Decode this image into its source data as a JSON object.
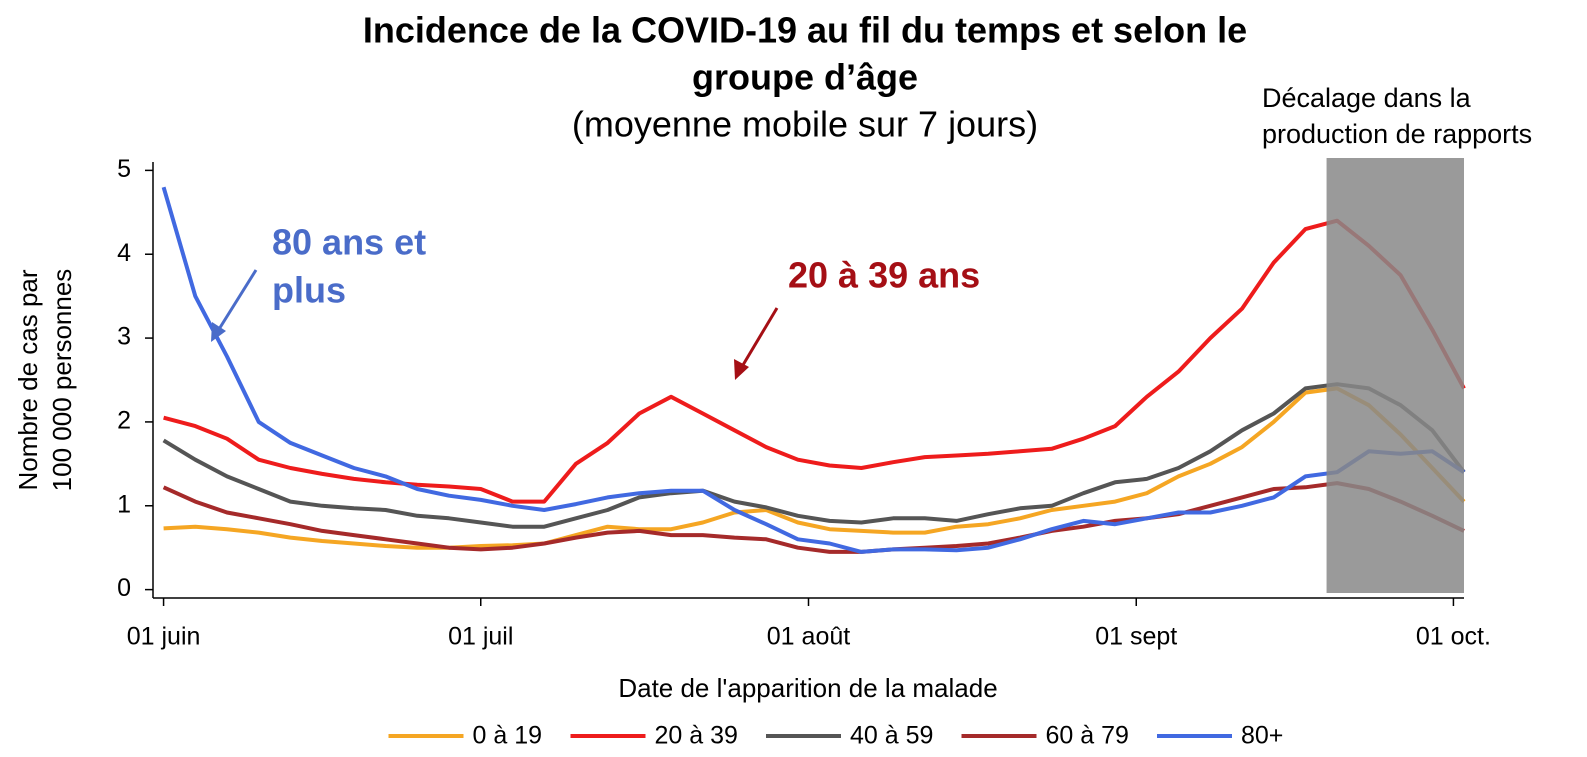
{
  "chart_data": {
    "type": "line",
    "title": [
      "Incidence de la COVID-19 au fil du temps et selon le",
      "groupe d’âge"
    ],
    "subtitle": "(moyenne mobile sur 7 jours)",
    "xlabel": "Date de l'apparition de la malade",
    "ylabel": [
      "Nombre de cas par",
      "100 000 personnes"
    ],
    "x": [
      0,
      3,
      6,
      9,
      12,
      15,
      18,
      21,
      24,
      27,
      30,
      33,
      36,
      39,
      42,
      45,
      48,
      51,
      54,
      57,
      60,
      63,
      66,
      69,
      72,
      75,
      78,
      81,
      84,
      87,
      90,
      93,
      96,
      99,
      102,
      105,
      108,
      111,
      114,
      117,
      120,
      123
    ],
    "xlim": [
      -1,
      123
    ],
    "xticks": [
      {
        "value": 0,
        "label": "01 juin"
      },
      {
        "value": 30,
        "label": "01 juil"
      },
      {
        "value": 61,
        "label": "01 août"
      },
      {
        "value": 92,
        "label": "01 sept"
      },
      {
        "value": 122,
        "label": "01 oct."
      }
    ],
    "ylim": [
      -0.1,
      5.1
    ],
    "yticks": [
      0,
      1,
      2,
      3,
      4,
      5
    ],
    "grid": false,
    "legend": "bottom",
    "series": [
      {
        "name": "0 à 19",
        "color": "#f5a623",
        "values": [
          0.73,
          0.75,
          0.72,
          0.68,
          0.62,
          0.58,
          0.55,
          0.52,
          0.5,
          0.5,
          0.52,
          0.53,
          0.55,
          0.65,
          0.75,
          0.72,
          0.72,
          0.8,
          0.92,
          0.95,
          0.8,
          0.72,
          0.7,
          0.68,
          0.68,
          0.75,
          0.78,
          0.85,
          0.95,
          1.0,
          1.05,
          1.15,
          1.35,
          1.5,
          1.7,
          2.0,
          2.35,
          2.4,
          2.2,
          1.85,
          1.45,
          1.05
        ]
      },
      {
        "name": "20 à 39",
        "color": "#ee1c1c",
        "values": [
          2.05,
          1.95,
          1.8,
          1.55,
          1.45,
          1.38,
          1.32,
          1.28,
          1.25,
          1.23,
          1.2,
          1.05,
          1.05,
          1.5,
          1.75,
          2.1,
          2.3,
          2.1,
          1.9,
          1.7,
          1.55,
          1.48,
          1.45,
          1.52,
          1.58,
          1.6,
          1.62,
          1.65,
          1.68,
          1.8,
          1.95,
          2.3,
          2.6,
          3.0,
          3.35,
          3.9,
          4.3,
          4.4,
          4.1,
          3.75,
          3.1,
          2.4
        ]
      },
      {
        "name": "40 à 59",
        "color": "#555555",
        "values": [
          1.78,
          1.55,
          1.35,
          1.2,
          1.05,
          1.0,
          0.97,
          0.95,
          0.88,
          0.85,
          0.8,
          0.75,
          0.75,
          0.85,
          0.95,
          1.1,
          1.15,
          1.18,
          1.05,
          0.98,
          0.88,
          0.82,
          0.8,
          0.85,
          0.85,
          0.82,
          0.9,
          0.97,
          1.0,
          1.15,
          1.28,
          1.32,
          1.45,
          1.65,
          1.9,
          2.1,
          2.4,
          2.45,
          2.4,
          2.2,
          1.9,
          1.4
        ]
      },
      {
        "name": "60 à 79",
        "color": "#a52a2a",
        "values": [
          1.22,
          1.05,
          0.92,
          0.85,
          0.78,
          0.7,
          0.65,
          0.6,
          0.55,
          0.5,
          0.48,
          0.5,
          0.55,
          0.62,
          0.68,
          0.7,
          0.65,
          0.65,
          0.62,
          0.6,
          0.5,
          0.45,
          0.45,
          0.48,
          0.5,
          0.52,
          0.55,
          0.62,
          0.7,
          0.75,
          0.82,
          0.85,
          0.9,
          1.0,
          1.1,
          1.2,
          1.22,
          1.27,
          1.2,
          1.05,
          0.88,
          0.7
        ]
      },
      {
        "name": "80+",
        "color": "#4169e1",
        "values": [
          4.8,
          3.5,
          2.78,
          2.0,
          1.75,
          1.6,
          1.45,
          1.35,
          1.2,
          1.12,
          1.07,
          1.0,
          0.95,
          1.02,
          1.1,
          1.15,
          1.18,
          1.18,
          0.95,
          0.78,
          0.6,
          0.55,
          0.45,
          0.48,
          0.48,
          0.47,
          0.5,
          0.6,
          0.72,
          0.82,
          0.78,
          0.85,
          0.92,
          0.92,
          1.0,
          1.1,
          1.35,
          1.4,
          1.65,
          1.62,
          1.65,
          1.4
        ]
      }
    ],
    "highlight": {
      "range": [
        110,
        123
      ],
      "color": "#888888",
      "label": [
        "Décalage dans la",
        "production de rapports"
      ]
    },
    "annotations": [
      {
        "text": [
          "80 ans et",
          "plus"
        ],
        "color": "#4a6cc9"
      },
      {
        "text": "20 à 39 ans",
        "color": "#a50f15"
      }
    ]
  }
}
